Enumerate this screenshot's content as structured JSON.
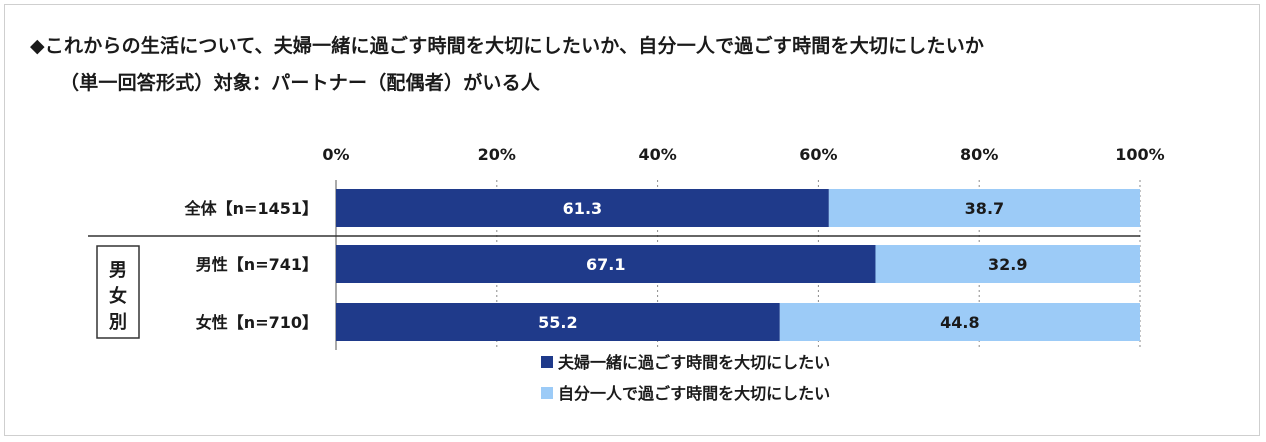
{
  "title_line1": "◆これからの生活について、夫婦一緒に過ごす時間を大切にしたいか、自分一人で過ごす時間を大切にしたいか",
  "title_line2": "（単一回答形式）対象：パートナー（配偶者）がいる人",
  "group_label": "男女別",
  "colors": {
    "series1": "#1f3a8a",
    "series2": "#9ccbf7",
    "label1": "#ffffff",
    "label2": "#1a1a1a"
  },
  "chart_data": {
    "type": "bar",
    "orientation": "horizontal",
    "stacked": true,
    "xlim": [
      0,
      100
    ],
    "x_ticks": [
      "0%",
      "20%",
      "40%",
      "60%",
      "80%",
      "100%"
    ],
    "grid": true,
    "legend_position": "bottom",
    "categories": [
      "全体【n=1451】",
      "男性【n=741】",
      "女性【n=710】"
    ],
    "series": [
      {
        "name": "夫婦一緒に過ごす時間を大切にしたい",
        "values": [
          61.3,
          67.1,
          55.2
        ]
      },
      {
        "name": "自分一人で過ごす時間を大切にしたい",
        "values": [
          38.7,
          32.9,
          44.8
        ]
      }
    ]
  }
}
